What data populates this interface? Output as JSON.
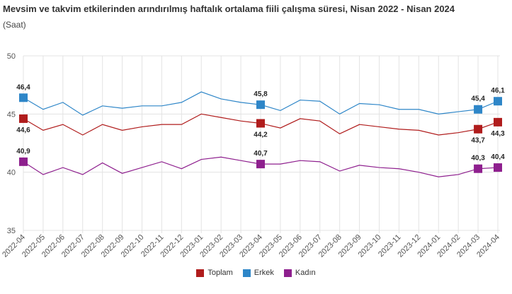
{
  "chart_data": {
    "type": "line",
    "title": "Mevsim ve takvim etkilerinden arındırılmış haftalık ortalama fiili çalışma süresi, Nisan 2022 - Nisan 2024",
    "subtitle": "(Saat)",
    "ylim": [
      35,
      50
    ],
    "yticks": [
      35,
      40,
      45,
      50
    ],
    "grid": true,
    "legend_position": "bottom",
    "categories": [
      "2022-04",
      "2022-05",
      "2022-06",
      "2022-07",
      "2022-08",
      "2022-09",
      "2022-10",
      "2022-11",
      "2022-12",
      "2023-01",
      "2023-02",
      "2023-03",
      "2023-04",
      "2023-05",
      "2023-06",
      "2023-07",
      "2023-08",
      "2023-09",
      "2023-10",
      "2023-11",
      "2023-12",
      "2024-01",
      "2024-02",
      "2024-03",
      "2024-04"
    ],
    "labeled_indices": [
      0,
      12,
      23,
      24
    ],
    "series": [
      {
        "name": "Toplam",
        "color": "#b01c1c",
        "label_pos": "below",
        "values": [
          44.6,
          43.6,
          44.1,
          43.2,
          44.1,
          43.6,
          43.9,
          44.1,
          44.1,
          45.0,
          44.7,
          44.4,
          44.2,
          43.8,
          44.6,
          44.4,
          43.3,
          44.1,
          43.9,
          43.7,
          43.6,
          43.2,
          43.4,
          43.7,
          44.3
        ]
      },
      {
        "name": "Erkek",
        "color": "#2e86c8",
        "label_pos": "above",
        "values": [
          46.4,
          45.4,
          46.0,
          44.9,
          45.7,
          45.5,
          45.7,
          45.7,
          46.0,
          46.9,
          46.3,
          46.0,
          45.8,
          45.3,
          46.2,
          46.1,
          45.0,
          45.9,
          45.8,
          45.4,
          45.4,
          45.0,
          45.2,
          45.4,
          46.1
        ]
      },
      {
        "name": "Kadın",
        "color": "#8e1f8e",
        "label_pos": "above",
        "values": [
          40.9,
          39.8,
          40.4,
          39.8,
          40.8,
          39.9,
          40.4,
          40.9,
          40.3,
          41.1,
          41.3,
          41.0,
          40.7,
          40.7,
          41.0,
          40.9,
          40.1,
          40.6,
          40.4,
          40.3,
          40.0,
          39.6,
          39.8,
          40.3,
          40.4
        ]
      }
    ]
  }
}
